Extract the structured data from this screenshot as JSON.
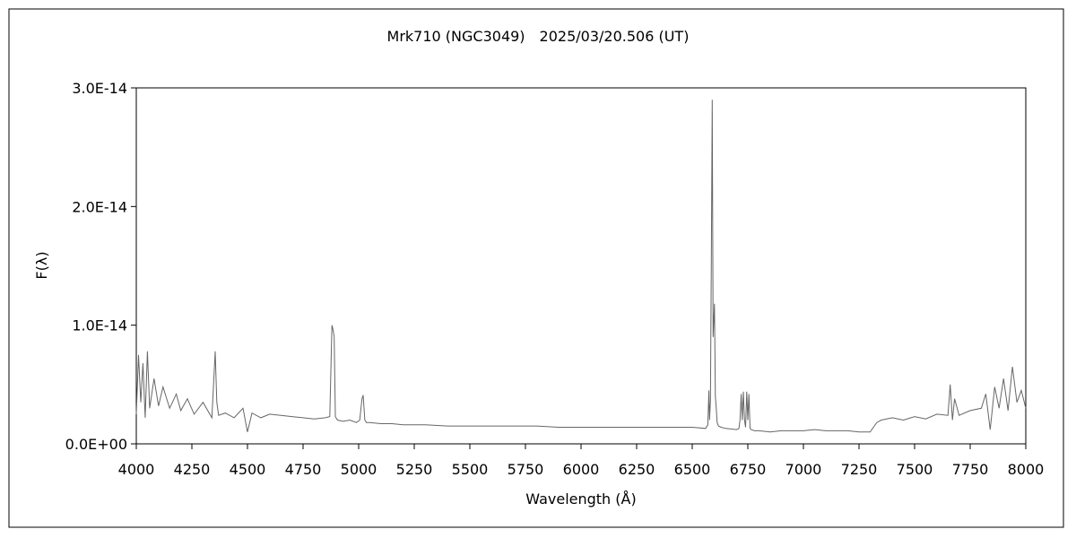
{
  "chart_data": {
    "type": "line",
    "title": "Mrk710 (NGC3049)　2025/03/20.506 (UT)",
    "xlabel": "Wavelength (Å)",
    "ylabel": "F(λ)",
    "xlim": [
      4000,
      8000
    ],
    "ylim": [
      0,
      3e-14
    ],
    "grid": false,
    "legend": "none",
    "line_color": "#666666",
    "x_ticks": [
      {
        "value": 4000,
        "label": "4000"
      },
      {
        "value": 4250,
        "label": "4250"
      },
      {
        "value": 4500,
        "label": "4500"
      },
      {
        "value": 4750,
        "label": "4750"
      },
      {
        "value": 5000,
        "label": "5000"
      },
      {
        "value": 5250,
        "label": "5250"
      },
      {
        "value": 5500,
        "label": "5500"
      },
      {
        "value": 5750,
        "label": "5750"
      },
      {
        "value": 6000,
        "label": "6000"
      },
      {
        "value": 6250,
        "label": "6250"
      },
      {
        "value": 6500,
        "label": "6500"
      },
      {
        "value": 6750,
        "label": "6750"
      },
      {
        "value": 7000,
        "label": "7000"
      },
      {
        "value": 7250,
        "label": "7250"
      },
      {
        "value": 7500,
        "label": "7500"
      },
      {
        "value": 7750,
        "label": "7750"
      },
      {
        "value": 8000,
        "label": "8000"
      }
    ],
    "y_ticks": [
      {
        "value": 0,
        "label": "0.0E+00"
      },
      {
        "value": 1e-14,
        "label": "1.0E-14"
      },
      {
        "value": 2e-14,
        "label": "2.0E-14"
      },
      {
        "value": 3e-14,
        "label": "3.0E-14"
      }
    ],
    "series": [
      {
        "x": [
          4000,
          4010,
          4020,
          4030,
          4040,
          4050,
          4060,
          4080,
          4100,
          4120,
          4150,
          4180,
          4200,
          4230,
          4260,
          4300,
          4340,
          4355,
          4362,
          4370,
          4400,
          4440,
          4480,
          4500,
          4520,
          4560,
          4600,
          4650,
          4700,
          4750,
          4800,
          4850,
          4870,
          4880,
          4885,
          4890,
          4895,
          4905,
          4930,
          4960,
          4990,
          5005,
          5015,
          5020,
          5028,
          5035,
          5050,
          5100,
          5150,
          5200,
          5250,
          5300,
          5400,
          5500,
          5600,
          5700,
          5800,
          5900,
          6000,
          6100,
          6200,
          6300,
          6400,
          6500,
          6560,
          6570,
          6575,
          6578,
          6582,
          6586,
          6590,
          6594,
          6600,
          6604,
          6608,
          6612,
          6618,
          6630,
          6650,
          6700,
          6710,
          6715,
          6720,
          6725,
          6730,
          6735,
          6740,
          6745,
          6750,
          6755,
          6760,
          6765,
          6780,
          6800,
          6850,
          6900,
          6950,
          7000,
          7050,
          7100,
          7150,
          7200,
          7250,
          7300,
          7330,
          7350,
          7400,
          7450,
          7500,
          7550,
          7600,
          7650,
          7660,
          7670,
          7680,
          7700,
          7750,
          7800,
          7820,
          7840,
          7860,
          7880,
          7900,
          7920,
          7940,
          7960,
          7980,
          8000
        ],
        "y": [
          2.5e-15,
          7.5e-15,
          3.5e-15,
          6.8e-15,
          2.2e-15,
          7.8e-15,
          3e-15,
          5.5e-15,
          3.2e-15,
          4.8e-15,
          3e-15,
          4.2e-15,
          2.8e-15,
          3.8e-15,
          2.5e-15,
          3.5e-15,
          2.2e-15,
          7.8e-15,
          3.5e-15,
          2.4e-15,
          2.6e-15,
          2.2e-15,
          3e-15,
          1e-15,
          2.6e-15,
          2.2e-15,
          2.5e-15,
          2.4e-15,
          2.3e-15,
          2.2e-15,
          2.1e-15,
          2.2e-15,
          2.3e-15,
          1e-14,
          9.6e-15,
          9e-15,
          2.3e-15,
          2e-15,
          1.9e-15,
          2e-15,
          1.8e-15,
          2e-15,
          3.8e-15,
          4.1e-15,
          2e-15,
          1.8e-15,
          1.8e-15,
          1.7e-15,
          1.7e-15,
          1.6e-15,
          1.6e-15,
          1.6e-15,
          1.5e-15,
          1.5e-15,
          1.5e-15,
          1.5e-15,
          1.5e-15,
          1.4e-15,
          1.4e-15,
          1.4e-15,
          1.4e-15,
          1.4e-15,
          1.4e-15,
          1.4e-15,
          1.3e-15,
          1.6e-15,
          4.5e-15,
          2e-15,
          3.6e-15,
          1.54e-14,
          2.9e-14,
          9e-15,
          1.18e-14,
          4e-15,
          3e-15,
          1.8e-15,
          1.5e-15,
          1.4e-15,
          1.3e-15,
          1.2e-15,
          1.3e-15,
          2e-15,
          4.2e-15,
          2e-15,
          4.4e-15,
          2e-15,
          1.4e-15,
          4.4e-15,
          2e-15,
          4.2e-15,
          1.3e-15,
          1.2e-15,
          1.1e-15,
          1.1e-15,
          1e-15,
          1.1e-15,
          1.1e-15,
          1.1e-15,
          1.2e-15,
          1.1e-15,
          1.1e-15,
          1.1e-15,
          1e-15,
          1e-15,
          1.8e-15,
          2e-15,
          2.2e-15,
          2e-15,
          2.3e-15,
          2.1e-15,
          2.5e-15,
          2.4e-15,
          5e-15,
          2e-15,
          3.8e-15,
          2.4e-15,
          2.8e-15,
          3e-15,
          4.2e-15,
          1.2e-15,
          4.8e-15,
          3e-15,
          5.5e-15,
          2.8e-15,
          6.5e-15,
          3.5e-15,
          4.5e-15,
          3e-15
        ]
      }
    ]
  }
}
